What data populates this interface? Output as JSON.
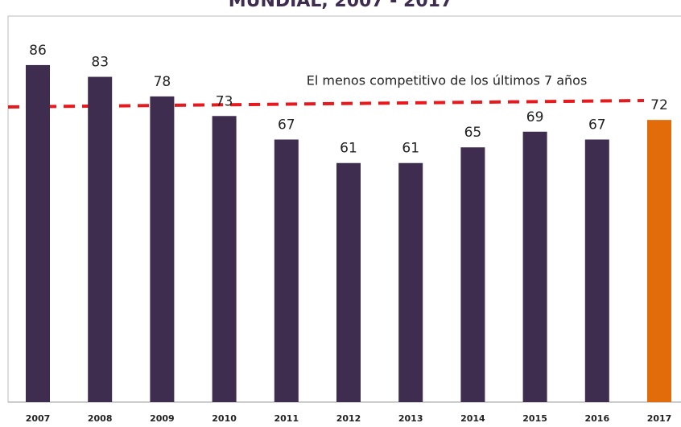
{
  "chart_data": {
    "type": "bar",
    "title": "MUNDIAL, 2007 - 2017",
    "annotation": "El menos competitivo de los últimos 7 años",
    "categories": [
      "2007",
      "2008",
      "2009",
      "2010",
      "2011",
      "2012",
      "2013",
      "2014",
      "2015",
      "2016",
      "2017"
    ],
    "values": [
      86,
      83,
      78,
      73,
      67,
      61,
      61,
      65,
      69,
      67,
      72
    ],
    "colors": [
      "#3f2d4f",
      "#3f2d4f",
      "#3f2d4f",
      "#3f2d4f",
      "#3f2d4f",
      "#3f2d4f",
      "#3f2d4f",
      "#3f2d4f",
      "#3f2d4f",
      "#3f2d4f",
      "#e36c0a"
    ],
    "ylim": [
      0,
      98.5
    ]
  }
}
